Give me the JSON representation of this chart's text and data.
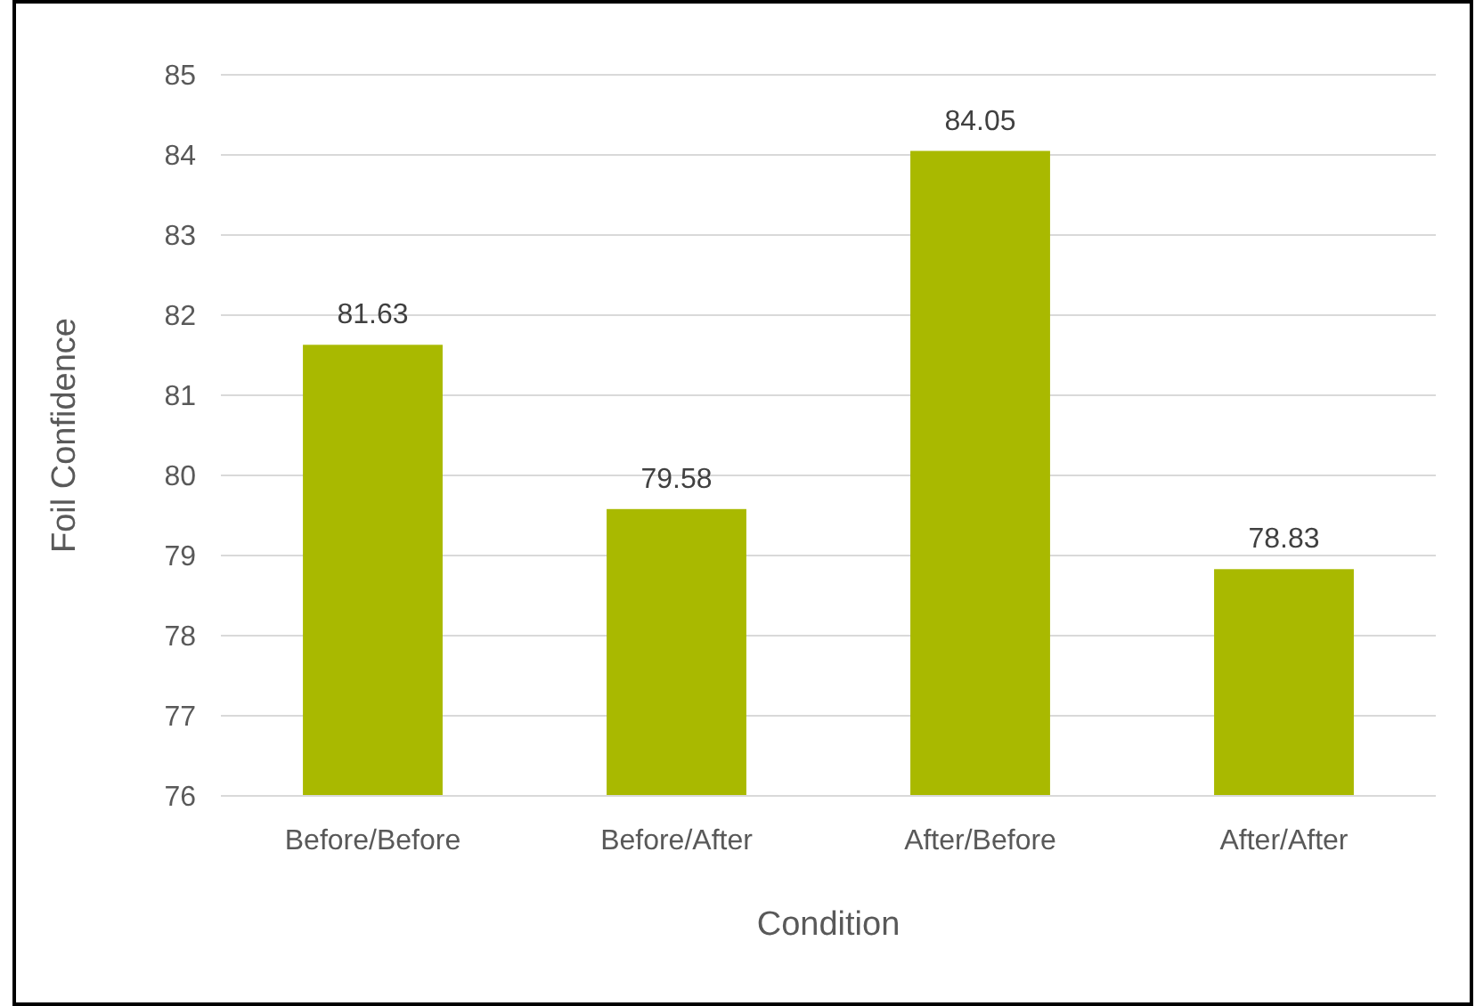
{
  "chart_data": {
    "type": "bar",
    "xlabel": "Condition",
    "ylabel": "Foil Confidence",
    "categories": [
      "Before/Before",
      "Before/After",
      "After/Before",
      "After/After"
    ],
    "values": [
      81.63,
      79.58,
      84.05,
      78.83
    ],
    "color": "#a9b900",
    "ylim": [
      76,
      85
    ],
    "yticks": [
      76,
      77,
      78,
      79,
      80,
      81,
      82,
      83,
      84,
      85
    ],
    "grid": "y",
    "data_labels": true
  }
}
